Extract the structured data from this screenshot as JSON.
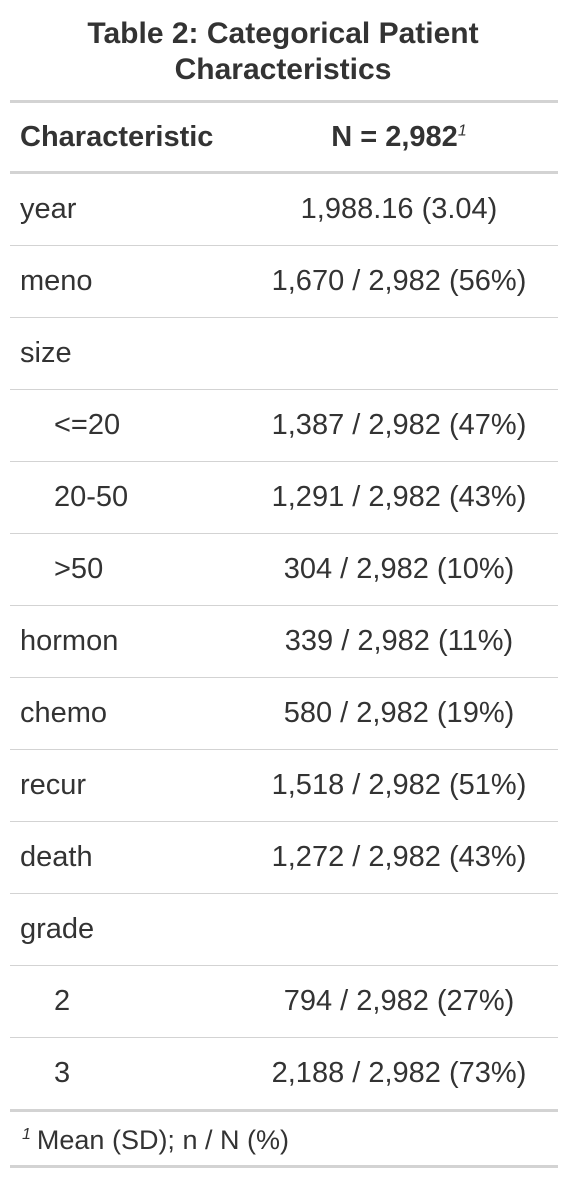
{
  "table": {
    "title": "Table 2: Categorical Patient Characteristics",
    "header": {
      "label": "Characteristic",
      "value": "N = 2,982",
      "footnote_mark": "1"
    },
    "rows": [
      {
        "label": "year",
        "value": "1,988.16 (3.04)"
      },
      {
        "label": "meno",
        "value": "1,670 / 2,982 (56%)"
      },
      {
        "label": "size",
        "value": ""
      },
      {
        "label": "<=20",
        "value": "1,387 / 2,982 (47%)"
      },
      {
        "label": "20-50",
        "value": "1,291 / 2,982 (43%)"
      },
      {
        "label": ">50",
        "value": "304 / 2,982 (10%)"
      },
      {
        "label": "hormon",
        "value": "339 / 2,982 (11%)"
      },
      {
        "label": "chemo",
        "value": "580 / 2,982 (19%)"
      },
      {
        "label": "recur",
        "value": "1,518 / 2,982 (51%)"
      },
      {
        "label": "death",
        "value": "1,272 / 2,982 (43%)"
      },
      {
        "label": "grade",
        "value": ""
      },
      {
        "label": "2",
        "value": "794 / 2,982 (27%)"
      },
      {
        "label": "3",
        "value": "2,188 / 2,982 (73%)"
      }
    ],
    "footnote": {
      "mark": "1",
      "text": "Mean (SD); n / N (%)"
    }
  }
}
